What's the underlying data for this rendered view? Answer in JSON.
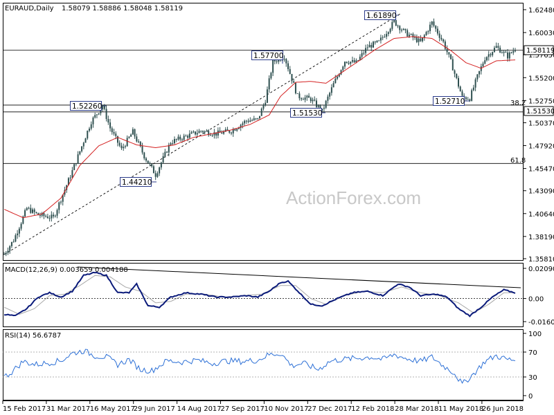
{
  "header": {
    "symbol": "EURAUD,Daily",
    "ohlc": "1.58079 1.58886 1.58048 1.58119"
  },
  "watermark": "ActionForex.com",
  "colors": {
    "candle": "#2e4f4f",
    "ma": "#d42020",
    "macd_main": "#0a1a7a",
    "macd_signal": "#a8a8a8",
    "rsi": "#2b6fd6",
    "trend": "#000000",
    "border": "#000000"
  },
  "chart_data": [
    {
      "type": "candlestick",
      "title": "EURAUD,Daily",
      "x_ticks": [
        "15 Feb 2017",
        "31 Mar 2017",
        "16 May 2017",
        "29 Jun 2017",
        "14 Aug 2017",
        "27 Sep 2017",
        "10 Nov 2017",
        "27 Dec 2017",
        "12 Feb 2018",
        "28 Mar 2018",
        "11 May 2018",
        "26 Jun 2018"
      ],
      "y_ticks": [
        "1.62480",
        "1.60030",
        "1.57650",
        "1.55200",
        "1.52750",
        "1.50370",
        "1.47920",
        "1.45470",
        "1.43090",
        "1.40640",
        "1.38190",
        "1.35810"
      ],
      "ylim": [
        1.3581,
        1.6248
      ],
      "current_price": "1.58119",
      "price_labels": [
        "1.61890",
        "1.57700",
        "1.52260",
        "1.51530",
        "1.52710",
        "1.44210"
      ],
      "horizontal_levels": [
        {
          "value": 1.5153,
          "label": "1.51530"
        },
        {
          "value": 1.5226,
          "label": "38.2"
        },
        {
          "value": 1.4601,
          "label": "61.8"
        }
      ],
      "series": [
        {
          "name": "price",
          "anchors": [
            [
              0,
              1.363
            ],
            [
              5,
              1.378
            ],
            [
              12,
              1.412
            ],
            [
              18,
              1.405
            ],
            [
              26,
              1.402
            ],
            [
              36,
              1.452
            ],
            [
              46,
              1.505
            ],
            [
              52,
              1.522
            ],
            [
              56,
              1.498
            ],
            [
              62,
              1.475
            ],
            [
              68,
              1.494
            ],
            [
              74,
              1.468
            ],
            [
              80,
              1.448
            ],
            [
              88,
              1.483
            ],
            [
              96,
              1.489
            ],
            [
              104,
              1.495
            ],
            [
              112,
              1.492
            ],
            [
              120,
              1.495
            ],
            [
              128,
              1.506
            ],
            [
              134,
              1.507
            ],
            [
              138,
              1.528
            ],
            [
              142,
              1.569
            ],
            [
              148,
              1.575
            ],
            [
              155,
              1.532
            ],
            [
              162,
              1.529
            ],
            [
              168,
              1.516
            ],
            [
              174,
              1.545
            ],
            [
              180,
              1.57
            ],
            [
              186,
              1.568
            ],
            [
              192,
              1.585
            ],
            [
              198,
              1.59
            ],
            [
              206,
              1.612
            ],
            [
              212,
              1.6
            ],
            [
              220,
              1.59
            ],
            [
              226,
              1.611
            ],
            [
              232,
              1.59
            ],
            [
              236,
              1.569
            ],
            [
              242,
              1.531
            ],
            [
              246,
              1.53
            ],
            [
              250,
              1.553
            ],
            [
              254,
              1.573
            ],
            [
              260,
              1.585
            ],
            [
              266,
              1.575
            ],
            [
              270,
              1.583
            ]
          ]
        },
        {
          "name": "MA",
          "anchors": [
            [
              0,
              1.411
            ],
            [
              10,
              1.402
            ],
            [
              20,
              1.406
            ],
            [
              30,
              1.423
            ],
            [
              40,
              1.458
            ],
            [
              50,
              1.479
            ],
            [
              60,
              1.488
            ],
            [
              70,
              1.48
            ],
            [
              80,
              1.477
            ],
            [
              90,
              1.48
            ],
            [
              100,
              1.488
            ],
            [
              110,
              1.492
            ],
            [
              120,
              1.496
            ],
            [
              130,
              1.502
            ],
            [
              140,
              1.512
            ],
            [
              146,
              1.532
            ],
            [
              154,
              1.547
            ],
            [
              162,
              1.548
            ],
            [
              170,
              1.546
            ],
            [
              178,
              1.557
            ],
            [
              186,
              1.568
            ],
            [
              196,
              1.582
            ],
            [
              206,
              1.594
            ],
            [
              216,
              1.596
            ],
            [
              226,
              1.594
            ],
            [
              236,
              1.581
            ],
            [
              244,
              1.568
            ],
            [
              252,
              1.562
            ],
            [
              260,
              1.57
            ],
            [
              270,
              1.571
            ]
          ]
        }
      ]
    },
    {
      "type": "line",
      "title": "MACD(12,26,9) 0.003659 0.004188",
      "y_ticks": [
        "0.020904",
        "0.00",
        "-0.016023"
      ],
      "ylim": [
        -0.016023,
        0.020904
      ],
      "series": [
        {
          "name": "MACD(12,26,9)",
          "anchors": [
            [
              0,
              -0.011
            ],
            [
              6,
              -0.012
            ],
            [
              12,
              -0.007
            ],
            [
              18,
              0.001
            ],
            [
              24,
              0.004
            ],
            [
              30,
              0.001
            ],
            [
              36,
              0.005
            ],
            [
              42,
              0.016
            ],
            [
              48,
              0.018
            ],
            [
              54,
              0.016
            ],
            [
              60,
              0.004
            ],
            [
              66,
              0.004
            ],
            [
              70,
              0.01
            ],
            [
              76,
              -0.005
            ],
            [
              82,
              -0.006
            ],
            [
              88,
              0.001
            ],
            [
              96,
              0.004
            ],
            [
              104,
              0.003
            ],
            [
              112,
              0.001
            ],
            [
              120,
              0.001
            ],
            [
              128,
              0.002
            ],
            [
              134,
              0.001
            ],
            [
              140,
              0.005
            ],
            [
              146,
              0.011
            ],
            [
              150,
              0.012
            ],
            [
              156,
              0.004
            ],
            [
              162,
              -0.004
            ],
            [
              168,
              -0.005
            ],
            [
              176,
              0.0
            ],
            [
              184,
              0.004
            ],
            [
              192,
              0.005
            ],
            [
              200,
              0.002
            ],
            [
              208,
              0.01
            ],
            [
              214,
              0.008
            ],
            [
              220,
              0.002
            ],
            [
              228,
              0.003
            ],
            [
              234,
              0.001
            ],
            [
              240,
              -0.007
            ],
            [
              246,
              -0.012
            ],
            [
              252,
              -0.006
            ],
            [
              258,
              0.001
            ],
            [
              264,
              0.006
            ],
            [
              270,
              0.004
            ]
          ]
        },
        {
          "name": "signal",
          "anchors": [
            [
              0,
              -0.006
            ],
            [
              8,
              -0.011
            ],
            [
              16,
              -0.007
            ],
            [
              24,
              0.002
            ],
            [
              32,
              0.003
            ],
            [
              40,
              0.009
            ],
            [
              48,
              0.016
            ],
            [
              56,
              0.015
            ],
            [
              64,
              0.008
            ],
            [
              72,
              0.005
            ],
            [
              80,
              -0.003
            ],
            [
              88,
              -0.002
            ],
            [
              96,
              0.003
            ],
            [
              106,
              0.003
            ],
            [
              116,
              0.001
            ],
            [
              126,
              0.002
            ],
            [
              136,
              0.003
            ],
            [
              146,
              0.009
            ],
            [
              154,
              0.009
            ],
            [
              162,
              0.0
            ],
            [
              170,
              -0.004
            ],
            [
              180,
              0.002
            ],
            [
              190,
              0.005
            ],
            [
              200,
              0.004
            ],
            [
              210,
              0.008
            ],
            [
              220,
              0.004
            ],
            [
              230,
              0.002
            ],
            [
              240,
              -0.003
            ],
            [
              248,
              -0.01
            ],
            [
              256,
              -0.004
            ],
            [
              264,
              0.004
            ],
            [
              270,
              0.004
            ]
          ]
        }
      ]
    },
    {
      "type": "line",
      "title": "RSI(14) 56.6787",
      "y_ticks": [
        "100",
        "70",
        "30",
        "0"
      ],
      "ylim": [
        0,
        100
      ],
      "levels": [
        70,
        30
      ],
      "series": [
        {
          "name": "RSI(14)",
          "anchors": [
            [
              0,
              30
            ],
            [
              4,
              38
            ],
            [
              10,
              55
            ],
            [
              16,
              50
            ],
            [
              22,
              52
            ],
            [
              30,
              56
            ],
            [
              36,
              68
            ],
            [
              42,
              72
            ],
            [
              48,
              64
            ],
            [
              54,
              62
            ],
            [
              60,
              50
            ],
            [
              66,
              58
            ],
            [
              72,
              42
            ],
            [
              78,
              40
            ],
            [
              86,
              56
            ],
            [
              94,
              54
            ],
            [
              102,
              57
            ],
            [
              110,
              52
            ],
            [
              118,
              56
            ],
            [
              126,
              55
            ],
            [
              134,
              57
            ],
            [
              140,
              66
            ],
            [
              146,
              68
            ],
            [
              152,
              48
            ],
            [
              158,
              52
            ],
            [
              166,
              42
            ],
            [
              172,
              55
            ],
            [
              178,
              58
            ],
            [
              186,
              60
            ],
            [
              194,
              62
            ],
            [
              200,
              58
            ],
            [
              206,
              66
            ],
            [
              212,
              60
            ],
            [
              220,
              55
            ],
            [
              226,
              62
            ],
            [
              232,
              48
            ],
            [
              238,
              36
            ],
            [
              242,
              18
            ],
            [
              248,
              35
            ],
            [
              254,
              55
            ],
            [
              260,
              64
            ],
            [
              266,
              58
            ],
            [
              270,
              57
            ]
          ]
        }
      ]
    }
  ]
}
